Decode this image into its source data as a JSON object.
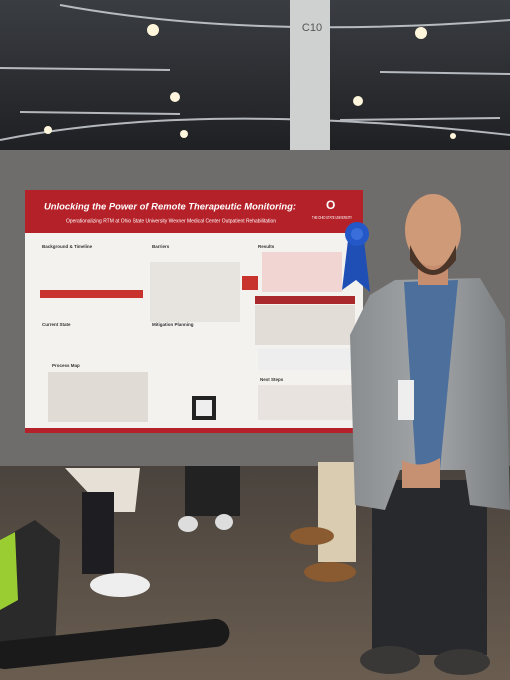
{
  "sign": "C10",
  "poster": {
    "title": "Unlocking the Power of Remote Therapeutic Monitoring:",
    "subtitle": "Operationalizing RTM at Ohio State University Wexner Medical Center Outpatient Rehabilitation",
    "logo": "THE OHIO STATE UNIVERSITY",
    "sections": [
      "Background & Timeline",
      "Barriers",
      "Results",
      "Current State",
      "Mitigation Planning",
      "Process Map",
      "Next Steps"
    ]
  }
}
